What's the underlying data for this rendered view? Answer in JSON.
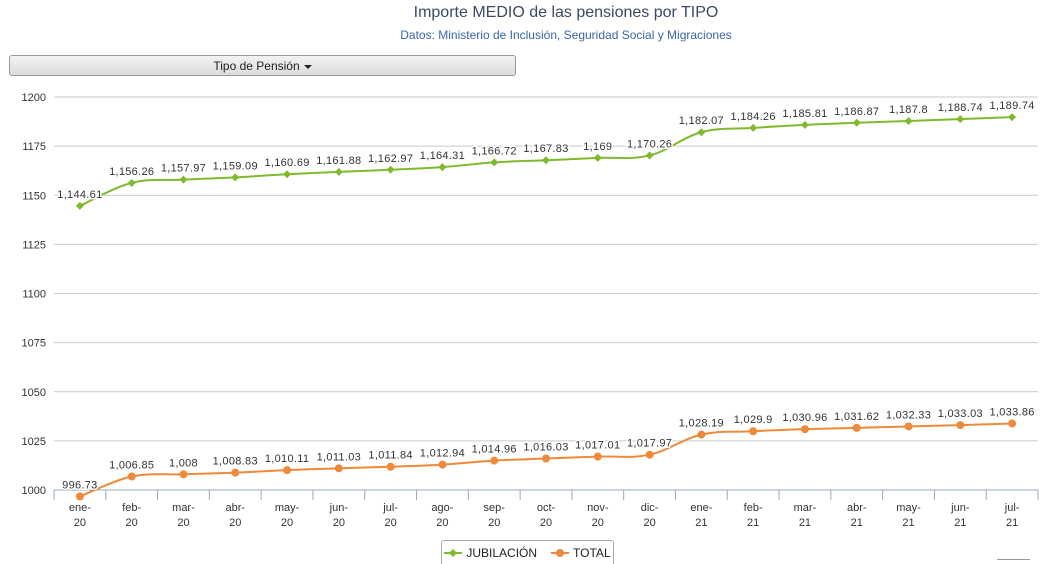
{
  "header": {
    "title": "Importe MEDIO de las pensiones por TIPO",
    "subtitle": "Datos: Ministerio de Inclusión, Seguridad Social y Migraciones"
  },
  "filter": {
    "label": "Tipo de Pensión"
  },
  "chart_data": {
    "type": "line",
    "categories": [
      [
        "ene-",
        "20"
      ],
      [
        "feb-",
        "20"
      ],
      [
        "mar-",
        "20"
      ],
      [
        "abr-",
        "20"
      ],
      [
        "may-",
        "20"
      ],
      [
        "jun-",
        "20"
      ],
      [
        "jul-",
        "20"
      ],
      [
        "ago-",
        "20"
      ],
      [
        "sep-",
        "20"
      ],
      [
        "oct-",
        "20"
      ],
      [
        "nov-",
        "20"
      ],
      [
        "dic-",
        "20"
      ],
      [
        "ene-",
        "21"
      ],
      [
        "feb-",
        "21"
      ],
      [
        "mar-",
        "21"
      ],
      [
        "abr-",
        "21"
      ],
      [
        "may-",
        "21"
      ],
      [
        "jun-",
        "21"
      ],
      [
        "jul-",
        "21"
      ]
    ],
    "ylim": [
      1000,
      1200
    ],
    "yticks": [
      1000,
      1025,
      1050,
      1075,
      1100,
      1125,
      1150,
      1175,
      1200
    ],
    "ytick_labels": [
      "1000",
      "1025",
      "1050",
      "1075",
      "1100",
      "1125",
      "1150",
      "1175",
      "1200"
    ],
    "series": [
      {
        "name": "JUBILACIÓN",
        "color": "#7fba2d",
        "marker": "diamond",
        "values": [
          1144.61,
          1156.26,
          1157.97,
          1159.09,
          1160.69,
          1161.88,
          1162.97,
          1164.31,
          1166.72,
          1167.83,
          1169,
          1170.26,
          1182.07,
          1184.26,
          1185.81,
          1186.87,
          1187.8,
          1188.74,
          1189.74
        ],
        "labels": [
          "1,144.61",
          "1,156.26",
          "1,157.97",
          "1,159.09",
          "1,160.69",
          "1,161.88",
          "1,162.97",
          "1,164.31",
          "1,166.72",
          "1,167.83",
          "1,169",
          "1,170.26",
          "1,182.07",
          "1,184.26",
          "1,185.81",
          "1,186.87",
          "1,187.8",
          "1,188.74",
          "1,189.74"
        ]
      },
      {
        "name": "TOTAL",
        "color": "#ef8a3c",
        "marker": "circle",
        "values": [
          996.73,
          1006.85,
          1008,
          1008.83,
          1010.11,
          1011.03,
          1011.84,
          1012.94,
          1014.96,
          1016.03,
          1017.01,
          1017.97,
          1028.19,
          1029.9,
          1030.96,
          1031.62,
          1032.33,
          1033.03,
          1033.86
        ],
        "labels": [
          "996.73",
          "1,006.85",
          "1,008",
          "1,008.83",
          "1,010.11",
          "1,011.03",
          "1,011.84",
          "1,012.94",
          "1,014.96",
          "1,016.03",
          "1,017.01",
          "1,017.97",
          "1,028.19",
          "1,029.9",
          "1,030.96",
          "1,031.62",
          "1,032.33",
          "1,033.03",
          "1,033.86"
        ]
      }
    ],
    "legend": "bottom-center"
  }
}
